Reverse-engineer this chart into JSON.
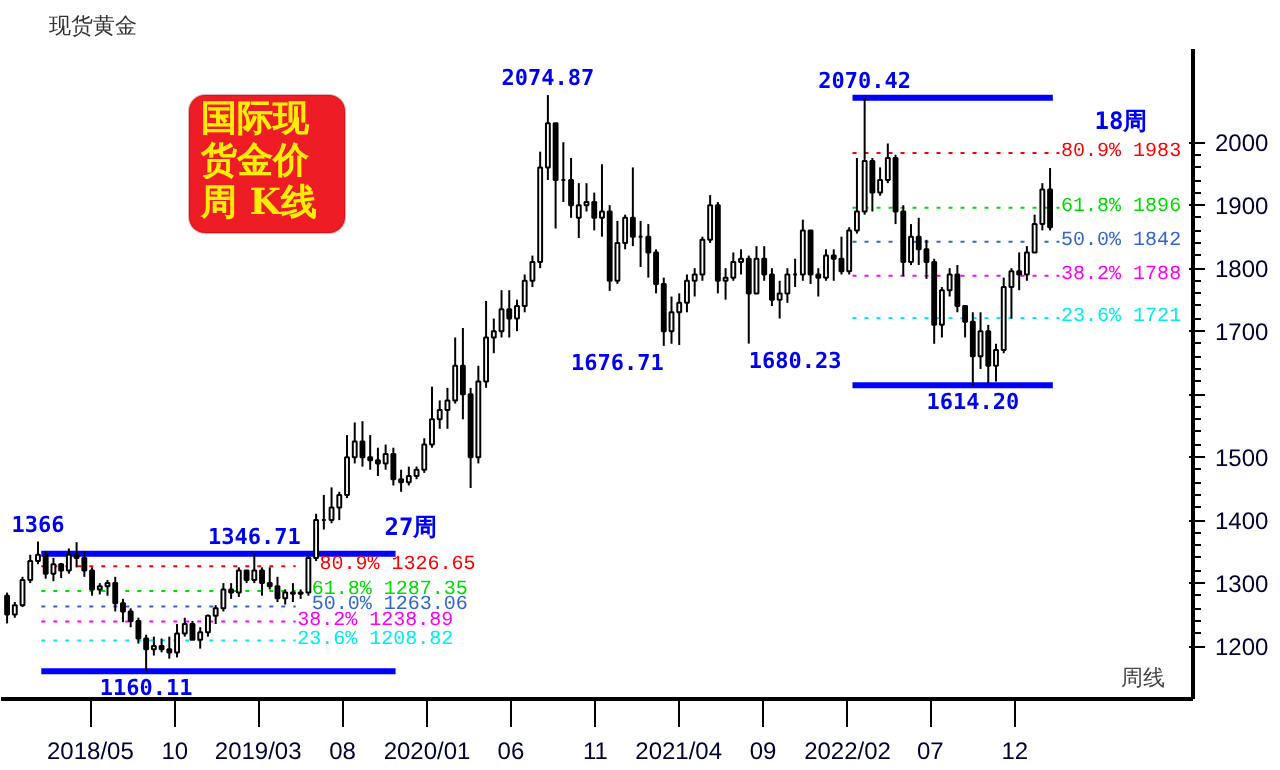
{
  "chart_data": {
    "type": "candlestick",
    "title": "现货黄金",
    "x": [
      "2017-12-01",
      "2017-12-15",
      "2017-12-29",
      "2018-01-12",
      "2018-01-26",
      "2018-02-09",
      "2018-02-23",
      "2018-03-09",
      "2018-03-23",
      "2018-04-06",
      "2018-04-20",
      "2018-05-04",
      "2018-05-18",
      "2018-06-01",
      "2018-06-15",
      "2018-06-29",
      "2018-07-13",
      "2018-07-27",
      "2018-08-10",
      "2018-08-24",
      "2018-09-07",
      "2018-09-21",
      "2018-10-05",
      "2018-10-19",
      "2018-11-02",
      "2018-11-16",
      "2018-11-30",
      "2018-12-14",
      "2018-12-28",
      "2019-01-11",
      "2019-01-25",
      "2019-02-08",
      "2019-02-22",
      "2019-03-08",
      "2019-03-22",
      "2019-04-05",
      "2019-04-19",
      "2019-05-03",
      "2019-05-17",
      "2019-05-31",
      "2019-06-14",
      "2019-06-28",
      "2019-07-12",
      "2019-07-26",
      "2019-08-09",
      "2019-08-23",
      "2019-09-06",
      "2019-09-20",
      "2019-10-04",
      "2019-10-18",
      "2019-11-01",
      "2019-11-15",
      "2019-11-29",
      "2019-12-13",
      "2019-12-27",
      "2020-01-10",
      "2020-01-24",
      "2020-02-07",
      "2020-02-21",
      "2020-03-06",
      "2020-03-20",
      "2020-04-03",
      "2020-04-17",
      "2020-05-01",
      "2020-05-15",
      "2020-05-29",
      "2020-06-12",
      "2020-06-26",
      "2020-07-10",
      "2020-07-24",
      "2020-08-07",
      "2020-08-21",
      "2020-09-04",
      "2020-09-18",
      "2020-10-02",
      "2020-10-16",
      "2020-10-30",
      "2020-11-13",
      "2020-11-27",
      "2020-12-11",
      "2020-12-25",
      "2021-01-08",
      "2021-01-22",
      "2021-02-05",
      "2021-02-19",
      "2021-03-05",
      "2021-03-19",
      "2021-04-02",
      "2021-04-16",
      "2021-04-30",
      "2021-05-14",
      "2021-05-28",
      "2021-06-11",
      "2021-06-25",
      "2021-07-09",
      "2021-07-23",
      "2021-08-06",
      "2021-08-20",
      "2021-09-03",
      "2021-09-17",
      "2021-10-01",
      "2021-10-15",
      "2021-10-29",
      "2021-11-12",
      "2021-11-26",
      "2021-12-10",
      "2021-12-24",
      "2022-01-07",
      "2022-01-21",
      "2022-02-04",
      "2022-02-18",
      "2022-03-04",
      "2022-03-18",
      "2022-04-01",
      "2022-04-15",
      "2022-04-29",
      "2022-05-13",
      "2022-05-27",
      "2022-06-10",
      "2022-06-24",
      "2022-07-08",
      "2022-07-22",
      "2022-08-05",
      "2022-08-19",
      "2022-09-02",
      "2022-09-16",
      "2022-09-30",
      "2022-10-14",
      "2022-10-28",
      "2022-11-11",
      "2022-11-25",
      "2022-12-09",
      "2022-12-23",
      "2023-01-06",
      "2023-01-20",
      "2023-02-03"
    ],
    "ohlc": [
      [
        1280,
        1285,
        1236,
        1250
      ],
      [
        1250,
        1270,
        1245,
        1265
      ],
      [
        1265,
        1310,
        1262,
        1305
      ],
      [
        1305,
        1345,
        1300,
        1335
      ],
      [
        1335,
        1366,
        1330,
        1345
      ],
      [
        1345,
        1350,
        1307,
        1315
      ],
      [
        1315,
        1340,
        1303,
        1330
      ],
      [
        1330,
        1332,
        1308,
        1320
      ],
      [
        1320,
        1355,
        1315,
        1345
      ],
      [
        1345,
        1365,
        1325,
        1340
      ],
      [
        1340,
        1350,
        1310,
        1320
      ],
      [
        1320,
        1325,
        1280,
        1290
      ],
      [
        1290,
        1300,
        1282,
        1295
      ],
      [
        1295,
        1305,
        1280,
        1300
      ],
      [
        1300,
        1310,
        1255,
        1268
      ],
      [
        1268,
        1275,
        1238,
        1255
      ],
      [
        1255,
        1260,
        1230,
        1240
      ],
      [
        1240,
        1245,
        1204,
        1212
      ],
      [
        1212,
        1218,
        1160.11,
        1195
      ],
      [
        1195,
        1215,
        1185,
        1200
      ],
      [
        1200,
        1212,
        1190,
        1195
      ],
      [
        1195,
        1215,
        1180,
        1190
      ],
      [
        1190,
        1235,
        1182,
        1220
      ],
      [
        1220,
        1245,
        1215,
        1235
      ],
      [
        1235,
        1240,
        1210,
        1210
      ],
      [
        1210,
        1230,
        1196,
        1222
      ],
      [
        1222,
        1250,
        1215,
        1248
      ],
      [
        1248,
        1265,
        1235,
        1260
      ],
      [
        1260,
        1300,
        1255,
        1290
      ],
      [
        1290,
        1300,
        1275,
        1285
      ],
      [
        1285,
        1325,
        1278,
        1320
      ],
      [
        1320,
        1320,
        1300,
        1305
      ],
      [
        1305,
        1346.71,
        1300,
        1320
      ],
      [
        1320,
        1325,
        1280,
        1300
      ],
      [
        1300,
        1325,
        1290,
        1295
      ],
      [
        1295,
        1310,
        1270,
        1276
      ],
      [
        1276,
        1290,
        1266,
        1285
      ],
      [
        1285,
        1300,
        1270,
        1283
      ],
      [
        1283,
        1290,
        1275,
        1285
      ],
      [
        1285,
        1345,
        1280,
        1340
      ],
      [
        1340,
        1410,
        1335,
        1400
      ],
      [
        1400,
        1440,
        1385,
        1400
      ],
      [
        1400,
        1452,
        1395,
        1420
      ],
      [
        1420,
        1445,
        1400,
        1440
      ],
      [
        1440,
        1535,
        1435,
        1500
      ],
      [
        1500,
        1555,
        1490,
        1525
      ],
      [
        1525,
        1557,
        1485,
        1500
      ],
      [
        1500,
        1535,
        1480,
        1495
      ],
      [
        1495,
        1515,
        1470,
        1490
      ],
      [
        1490,
        1520,
        1480,
        1505
      ],
      [
        1505,
        1515,
        1455,
        1465
      ],
      [
        1465,
        1480,
        1445,
        1460
      ],
      [
        1460,
        1485,
        1455,
        1470
      ],
      [
        1470,
        1485,
        1465,
        1480
      ],
      [
        1480,
        1530,
        1475,
        1520
      ],
      [
        1520,
        1612,
        1515,
        1560
      ],
      [
        1560,
        1590,
        1545,
        1575
      ],
      [
        1575,
        1610,
        1545,
        1590
      ],
      [
        1590,
        1690,
        1585,
        1645
      ],
      [
        1645,
        1705,
        1560,
        1600
      ],
      [
        1600,
        1610,
        1451,
        1500
      ],
      [
        1500,
        1645,
        1490,
        1620
      ],
      [
        1620,
        1748,
        1610,
        1690
      ],
      [
        1690,
        1720,
        1665,
        1700
      ],
      [
        1700,
        1765,
        1690,
        1735
      ],
      [
        1735,
        1765,
        1690,
        1720
      ],
      [
        1720,
        1750,
        1700,
        1740
      ],
      [
        1740,
        1790,
        1730,
        1780
      ],
      [
        1780,
        1820,
        1770,
        1810
      ],
      [
        1810,
        1985,
        1800,
        1960
      ],
      [
        1960,
        2074.87,
        1940,
        2030
      ],
      [
        2030,
        2030,
        1863,
        1940
      ],
      [
        1940,
        2000,
        1905,
        1940
      ],
      [
        1940,
        1975,
        1880,
        1900
      ],
      [
        1880,
        1935,
        1848,
        1900
      ],
      [
        1900,
        1935,
        1890,
        1905
      ],
      [
        1905,
        1920,
        1860,
        1880
      ],
      [
        1880,
        1965,
        1850,
        1890
      ],
      [
        1890,
        1900,
        1764,
        1780
      ],
      [
        1780,
        1875,
        1775,
        1840
      ],
      [
        1840,
        1885,
        1830,
        1880
      ],
      [
        1880,
        1960,
        1835,
        1850
      ],
      [
        1850,
        1875,
        1802,
        1850
      ],
      [
        1850,
        1870,
        1785,
        1825
      ],
      [
        1825,
        1830,
        1760,
        1775
      ],
      [
        1775,
        1785,
        1676.71,
        1700
      ],
      [
        1700,
        1755,
        1680,
        1730
      ],
      [
        1730,
        1760,
        1678,
        1745
      ],
      [
        1745,
        1790,
        1730,
        1780
      ],
      [
        1780,
        1800,
        1755,
        1790
      ],
      [
        1790,
        1850,
        1780,
        1845
      ],
      [
        1845,
        1916,
        1840,
        1900
      ],
      [
        1900,
        1905,
        1760,
        1780
      ],
      [
        1780,
        1800,
        1750,
        1785
      ],
      [
        1785,
        1825,
        1780,
        1810
      ],
      [
        1810,
        1830,
        1790,
        1815
      ],
      [
        1815,
        1820,
        1680.23,
        1760
      ],
      [
        1760,
        1835,
        1760,
        1815
      ],
      [
        1815,
        1835,
        1780,
        1790
      ],
      [
        1790,
        1800,
        1740,
        1750
      ],
      [
        1750,
        1780,
        1720,
        1760
      ],
      [
        1760,
        1800,
        1745,
        1790
      ],
      [
        1790,
        1815,
        1770,
        1790
      ],
      [
        1790,
        1877,
        1780,
        1860
      ],
      [
        1860,
        1860,
        1775,
        1790
      ],
      [
        1790,
        1800,
        1755,
        1785
      ],
      [
        1785,
        1830,
        1780,
        1820
      ],
      [
        1820,
        1830,
        1780,
        1815
      ],
      [
        1815,
        1850,
        1790,
        1795
      ],
      [
        1795,
        1865,
        1790,
        1860
      ],
      [
        1860,
        1975,
        1855,
        1890
      ],
      [
        1890,
        2070.42,
        1885,
        1970
      ],
      [
        1970,
        1975,
        1890,
        1920
      ],
      [
        1920,
        1960,
        1915,
        1940
      ],
      [
        1940,
        1998,
        1935,
        1975
      ],
      [
        1975,
        1980,
        1870,
        1890
      ],
      [
        1890,
        1900,
        1787,
        1810
      ],
      [
        1810,
        1870,
        1805,
        1850
      ],
      [
        1850,
        1880,
        1805,
        1830
      ],
      [
        1830,
        1845,
        1783,
        1810
      ],
      [
        1810,
        1815,
        1680,
        1710
      ],
      [
        1710,
        1770,
        1690,
        1765
      ],
      [
        1765,
        1800,
        1755,
        1790
      ],
      [
        1790,
        1805,
        1730,
        1740
      ],
      [
        1740,
        1740,
        1690,
        1715
      ],
      [
        1715,
        1730,
        1614.2,
        1660
      ],
      [
        1660,
        1730,
        1640,
        1700
      ],
      [
        1700,
        1710,
        1617,
        1645
      ],
      [
        1645,
        1680,
        1620,
        1670
      ],
      [
        1670,
        1785,
        1665,
        1770
      ],
      [
        1770,
        1800,
        1720,
        1795
      ],
      [
        1795,
        1825,
        1765,
        1790
      ],
      [
        1790,
        1835,
        1780,
        1825
      ],
      [
        1825,
        1885,
        1825,
        1870
      ],
      [
        1870,
        1935,
        1860,
        1925
      ],
      [
        1925,
        1959,
        1860,
        1865
      ]
    ],
    "series": [
      {
        "type": "line",
        "line_style": "solid",
        "color": "#0000ff",
        "x": [
          "2018-02-01",
          "2019-11-05"
        ],
        "values": [
          1346.71,
          1346.71
        ]
      },
      {
        "type": "line",
        "line_style": "solid",
        "color": "#0000ff",
        "x": [
          "2018-02-01",
          "2019-11-05"
        ],
        "values": [
          1160.11,
          1160.11
        ]
      },
      {
        "type": "line",
        "line_style": "dotted",
        "color": "#ff0000",
        "name": "80.9%  1326.65",
        "x": [
          "2018-02-01",
          "2019-05-08"
        ],
        "values": [
          1326.65,
          1326.65
        ]
      },
      {
        "type": "line",
        "line_style": "dotted",
        "color": "#00dd00",
        "name": "61.8%  1287.35",
        "x": [
          "2018-02-01",
          "2019-05-08"
        ],
        "values": [
          1287.35,
          1287.35
        ]
      },
      {
        "type": "line",
        "line_style": "dotted",
        "color": "#3366cc",
        "name": "50.0%  1263.06",
        "x": [
          "2018-02-01",
          "2019-05-08"
        ],
        "values": [
          1263.06,
          1263.06
        ]
      },
      {
        "type": "line",
        "line_style": "dotted",
        "color": "#ff00ff",
        "name": "38.2%  1238.89",
        "x": [
          "2018-02-01",
          "2019-05-08"
        ],
        "values": [
          1238.89,
          1238.89
        ]
      },
      {
        "type": "line",
        "line_style": "dotted",
        "color": "#00eeee",
        "name": "23.6%  1208.82",
        "x": [
          "2018-02-01",
          "2019-05-08"
        ],
        "values": [
          1208.82,
          1208.82
        ]
      },
      {
        "type": "line",
        "line_style": "solid",
        "color": "#0000ff",
        "x": [
          "2022-02-10",
          "2023-02-08"
        ],
        "values": [
          2070.42,
          2070.42
        ]
      },
      {
        "type": "line",
        "line_style": "solid",
        "color": "#0000ff",
        "x": [
          "2022-02-10",
          "2023-02-08"
        ],
        "values": [
          1614.2,
          1614.2
        ]
      },
      {
        "type": "line",
        "line_style": "dotted",
        "color": "#ff0000",
        "name": "80.9%  1983",
        "x": [
          "2022-02-10",
          "2023-02-20"
        ],
        "values": [
          1983,
          1983
        ]
      },
      {
        "type": "line",
        "line_style": "dotted",
        "color": "#00dd00",
        "name": "61.8%  1896",
        "x": [
          "2022-02-10",
          "2023-02-20"
        ],
        "values": [
          1896,
          1896
        ]
      },
      {
        "type": "line",
        "line_style": "dotted",
        "color": "#3366cc",
        "name": "50.0%  1842",
        "x": [
          "2022-02-10",
          "2023-02-20"
        ],
        "values": [
          1842,
          1842
        ]
      },
      {
        "type": "line",
        "line_style": "dotted",
        "color": "#ff00ff",
        "name": "38.2%  1788",
        "x": [
          "2022-02-10",
          "2023-02-20"
        ],
        "values": [
          1788,
          1788
        ]
      },
      {
        "type": "line",
        "line_style": "dotted",
        "color": "#00eeee",
        "name": "23.6%  1721",
        "x": [
          "2022-02-10",
          "2023-02-20"
        ],
        "values": [
          1721,
          1721
        ]
      }
    ],
    "annotations": [
      "国际现货金价周  K线",
      "周线",
      {
        "text": "2074.87",
        "x": "2020-08-07",
        "y": 2074.87
      },
      {
        "text": "2070.42",
        "x": "2022-03-04",
        "y": 2070.42
      },
      {
        "text": "1676.71",
        "x": "2021-03-05",
        "y": 1676.71
      },
      {
        "text": "1680.23",
        "x": "2021-08-06",
        "y": 1680.23
      },
      {
        "text": "1614.20",
        "x": "2022-09-16",
        "y": 1614.2
      },
      {
        "text": "1366",
        "x": "2018-01-26",
        "y": 1366
      },
      {
        "text": "1346.71",
        "x": "2019-02-22",
        "y": 1346.71
      },
      {
        "text": "1160.11",
        "x": "2018-08-10",
        "y": 1160.11
      },
      "27周",
      "18周"
    ],
    "xlim": [
      "2017-11-20",
      "2023-10-20"
    ],
    "xticks": [
      {
        "value": "2018-05-01",
        "label": "2018/05"
      },
      {
        "value": "2018-10-01",
        "label": "10"
      },
      {
        "value": "2019-03-01",
        "label": "2019/03"
      },
      {
        "value": "2019-08-01",
        "label": "08"
      },
      {
        "value": "2020-01-01",
        "label": "2020/01"
      },
      {
        "value": "2020-06-01",
        "label": "06"
      },
      {
        "value": "2020-11-01",
        "label": "11"
      },
      {
        "value": "2021-04-01",
        "label": "2021/04"
      },
      {
        "value": "2021-09-01",
        "label": "09"
      },
      {
        "value": "2022-02-01",
        "label": "2022/02"
      },
      {
        "value": "2022-07-01",
        "label": "07"
      },
      {
        "value": "2022-12-01",
        "label": "12"
      }
    ],
    "ylim": [
      1116,
      2148
    ],
    "yticks": [
      1200,
      1300,
      1400,
      1500,
      {
        "value": 1600,
        "label": null
      },
      1700,
      1800,
      1900,
      2000
    ],
    "grid": false
  }
}
